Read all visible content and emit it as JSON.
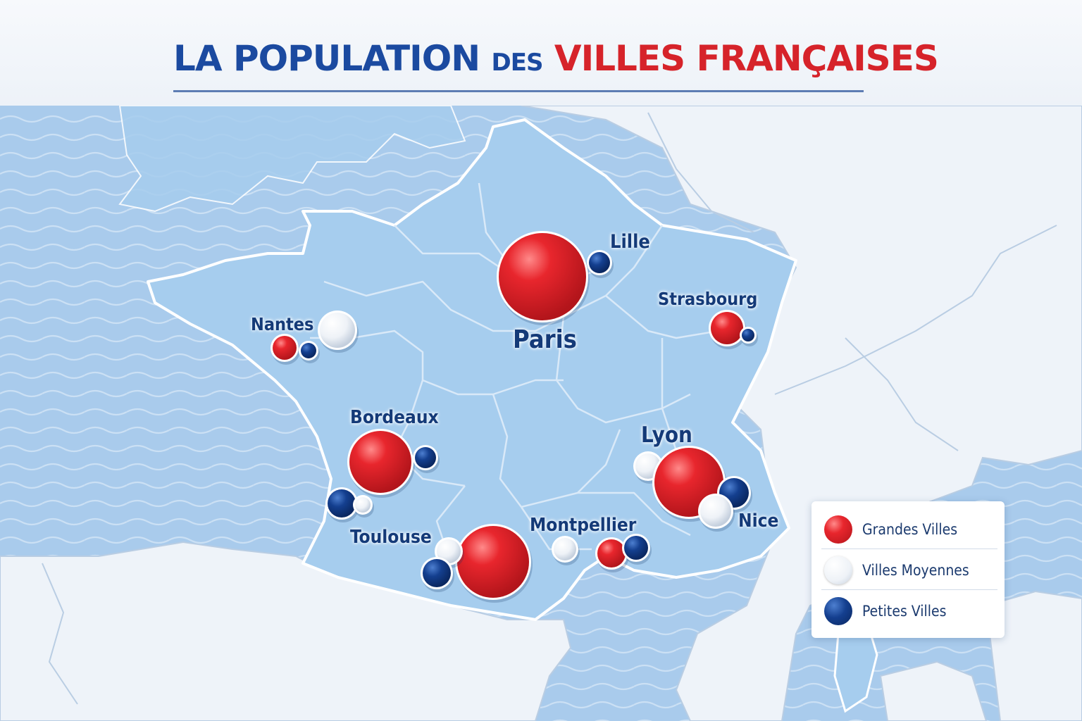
{
  "title": {
    "part1": "La Population",
    "part2": "des",
    "part3": "Villes Françaises"
  },
  "colors": {
    "large": "#e0242b",
    "medium": "#f4f6f9",
    "small": "#123f8f",
    "title_blue": "#1b4aa0",
    "title_red": "#d6232a",
    "sea": "#a9cbec",
    "land": "#a6cdee"
  },
  "cities": [
    {
      "name": "Paris",
      "category": "large"
    },
    {
      "name": "Lille",
      "category": "small"
    },
    {
      "name": "Strasbourg",
      "category": "large"
    },
    {
      "name": "Nantes",
      "category": "medium"
    },
    {
      "name": "Bordeaux",
      "category": "large"
    },
    {
      "name": "Toulouse",
      "category": "large"
    },
    {
      "name": "Montpellier",
      "category": "large"
    },
    {
      "name": "Lyon",
      "category": "large"
    },
    {
      "name": "Nice",
      "category": "medium"
    }
  ],
  "legend": [
    {
      "label": "Grandes Villes",
      "category": "large"
    },
    {
      "label": "Villes Moyennes",
      "category": "medium"
    },
    {
      "label": "Petites Villes",
      "category": "small"
    }
  ]
}
